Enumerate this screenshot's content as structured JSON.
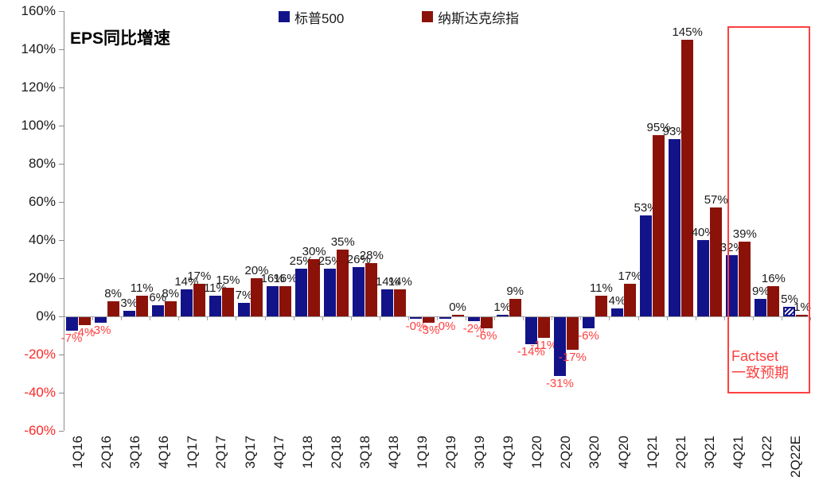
{
  "chart_data": {
    "type": "bar",
    "title": "EPS同比增速",
    "legend_position": "top",
    "grid": false,
    "ylim": [
      -60,
      160
    ],
    "y_ticks": [
      {
        "label": "160%",
        "value": 160
      },
      {
        "label": "140%",
        "value": 140
      },
      {
        "label": "120%",
        "value": 120
      },
      {
        "label": "100%",
        "value": 100
      },
      {
        "label": "80%",
        "value": 80
      },
      {
        "label": "60%",
        "value": 60
      },
      {
        "label": "40%",
        "value": 40
      },
      {
        "label": "20%",
        "value": 20
      },
      {
        "label": "0%",
        "value": 0
      },
      {
        "label": "-20%",
        "value": -20
      },
      {
        "label": "-40%",
        "value": -40
      },
      {
        "label": "-60%",
        "value": -60
      }
    ],
    "categories": [
      "1Q16",
      "2Q16",
      "3Q16",
      "4Q16",
      "1Q17",
      "2Q17",
      "3Q17",
      "4Q17",
      "1Q18",
      "2Q18",
      "3Q18",
      "4Q18",
      "1Q19",
      "2Q19",
      "3Q19",
      "4Q19",
      "1Q20",
      "2Q20",
      "3Q20",
      "4Q20",
      "1Q21",
      "2Q21",
      "3Q21",
      "4Q21",
      "1Q22",
      "2Q22E"
    ],
    "series": [
      {
        "key": "sp500",
        "name": "标普500",
        "color": "#131389",
        "values": [
          -7,
          -3,
          3,
          6,
          14,
          11,
          7,
          16,
          25,
          25,
          26,
          14,
          0,
          0,
          -2,
          1,
          -14,
          -31,
          -6,
          4,
          53,
          93,
          40,
          32,
          9,
          5
        ],
        "labels": [
          "-7%",
          "-3%",
          "3%",
          "6%",
          "14%",
          "11%",
          "7%",
          "16%",
          "25%",
          "25%",
          "26%",
          "14%",
          "-0%",
          "-0%",
          "-2%",
          "1%",
          "-14%",
          "-31%",
          "-6%",
          "4%",
          "53%",
          "93%",
          "40%",
          "32%",
          "9%",
          "5%"
        ],
        "hatched_categories": [
          "2Q22E"
        ]
      },
      {
        "key": "nasdaq",
        "name": "纳斯达克综指",
        "color": "#8B1209",
        "values": [
          -4,
          8,
          11,
          8,
          17,
          15,
          20,
          16,
          30,
          35,
          28,
          14,
          -3,
          0,
          -6,
          9,
          -11,
          -17,
          11,
          17,
          95,
          145,
          57,
          39,
          16,
          1
        ],
        "labels": [
          "-4%",
          "8%",
          "11%",
          "8%",
          "17%",
          "15%",
          "20%",
          "16%",
          "30%",
          "35%",
          "28%",
          "14%",
          "-3%",
          "0%",
          "-6%",
          "9%",
          "-11%",
          "-17%",
          "11%",
          "17%",
          "95%",
          "145%",
          "57%",
          "39%",
          "16%",
          "1%"
        ],
        "hatched_categories": []
      }
    ],
    "colors": {
      "positive_label": "#1a1a1a",
      "negative_label": "#ff4040",
      "axis_negative": "#ff2626",
      "axis_positive": "#1a1a1a",
      "axis_line": "#8c8c8c",
      "forecast_box": "#ff4040"
    },
    "forecast_annotation": {
      "line1": "Factset",
      "line2": "一致预期",
      "covers_categories": [
        "4Q21",
        "1Q22",
        "2Q22E"
      ]
    }
  }
}
